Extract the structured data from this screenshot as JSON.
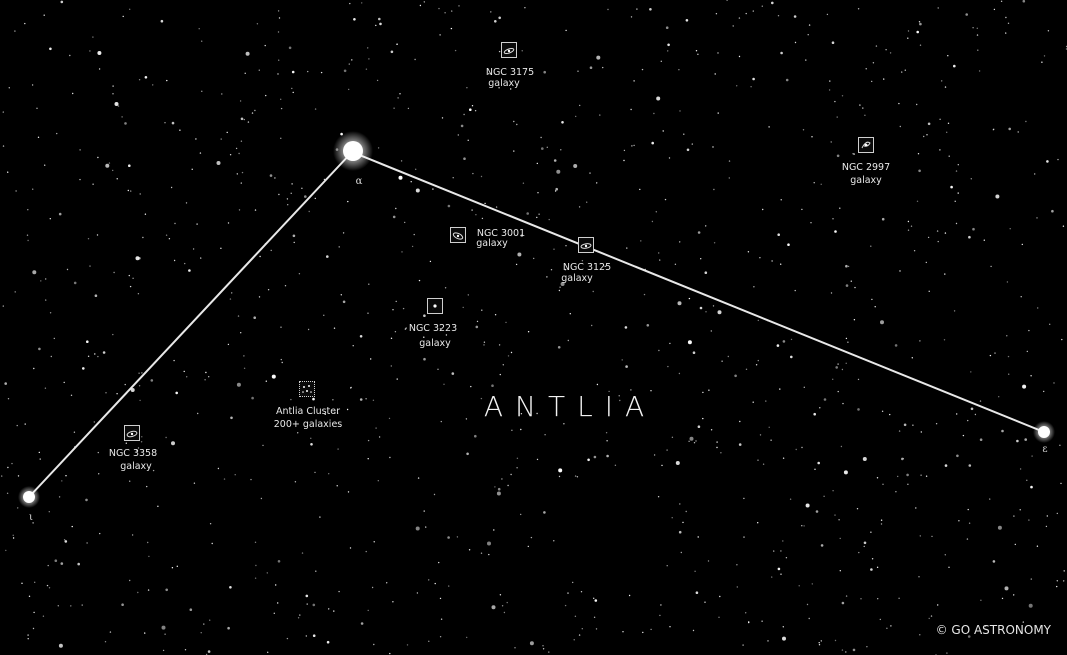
{
  "map": {
    "constellation": "ANTLIA",
    "copyright": "© GO ASTRONOMY",
    "stars": [
      {
        "name": "alpha",
        "greek": "α"
      },
      {
        "name": "epsilon",
        "greek": "ε"
      },
      {
        "name": "iota",
        "greek": "ι"
      }
    ],
    "objects": [
      {
        "id": "ngc3175",
        "name": "NGC 3175",
        "type": "galaxy"
      },
      {
        "id": "ngc2997",
        "name": "NGC 2997",
        "type": "galaxy"
      },
      {
        "id": "ngc3001",
        "name": "NGC 3001",
        "type": "galaxy"
      },
      {
        "id": "ngc3125",
        "name": "NGC 3125",
        "type": "galaxy"
      },
      {
        "id": "ngc3223",
        "name": "NGC 3223",
        "type": "galaxy"
      },
      {
        "id": "antlia-cluster",
        "name": "Antlia Cluster",
        "type": "200+ galaxies"
      },
      {
        "id": "ngc3358",
        "name": "NGC 3358",
        "type": "galaxy"
      }
    ]
  }
}
